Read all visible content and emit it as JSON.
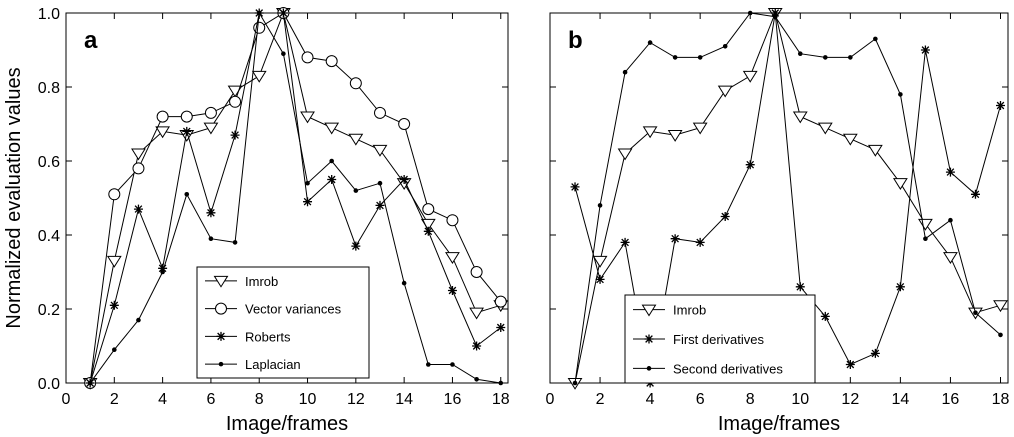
{
  "chart_data": [
    {
      "panel_label": "a",
      "type": "line",
      "xlabel": "Image/frames",
      "ylabel": "Normalized evaluation values",
      "xlim": [
        0,
        18.3
      ],
      "ylim": [
        0,
        1.0
      ],
      "xticks": [
        0,
        2,
        4,
        6,
        8,
        10,
        12,
        14,
        16,
        18
      ],
      "yticks": [
        0.0,
        0.2,
        0.4,
        0.6,
        0.8,
        1.0
      ],
      "grid": false,
      "legend": "bottom-center",
      "x": [
        1,
        2,
        3,
        4,
        5,
        6,
        7,
        8,
        9,
        10,
        11,
        12,
        13,
        14,
        15,
        16,
        17,
        18
      ],
      "series": [
        {
          "name": "Imrob",
          "marker": "triangle-down",
          "values": [
            0.0,
            0.33,
            0.62,
            0.68,
            0.67,
            0.69,
            0.79,
            0.83,
            1.0,
            0.72,
            0.69,
            0.66,
            0.63,
            0.54,
            0.43,
            0.34,
            0.19,
            0.21
          ]
        },
        {
          "name": "Vector variances",
          "marker": "circle",
          "values": [
            0.0,
            0.51,
            0.58,
            0.72,
            0.72,
            0.73,
            0.76,
            0.96,
            1.0,
            0.88,
            0.87,
            0.81,
            0.73,
            0.7,
            0.47,
            0.44,
            0.3,
            0.22
          ]
        },
        {
          "name": "Roberts",
          "marker": "star",
          "values": [
            0.0,
            0.21,
            0.47,
            0.31,
            0.68,
            0.46,
            0.67,
            1.0,
            1.0,
            0.49,
            0.55,
            0.37,
            0.48,
            0.55,
            0.41,
            0.25,
            0.1,
            0.15
          ]
        },
        {
          "name": "Laplacian",
          "marker": "dot",
          "values": [
            0.0,
            0.09,
            0.17,
            0.3,
            0.51,
            0.39,
            0.38,
            1.0,
            0.89,
            0.54,
            0.6,
            0.52,
            0.54,
            0.27,
            0.05,
            0.05,
            0.01,
            0.0
          ]
        }
      ]
    },
    {
      "panel_label": "b",
      "type": "line",
      "xlabel": "Image/frames",
      "ylabel": "",
      "xlim": [
        0,
        18.3
      ],
      "ylim": [
        0,
        1.0
      ],
      "xticks": [
        0,
        2,
        4,
        6,
        8,
        10,
        12,
        14,
        16,
        18
      ],
      "yticks": [
        0.0,
        0.2,
        0.4,
        0.6,
        0.8,
        1.0
      ],
      "grid": false,
      "legend": "bottom-left",
      "x": [
        1,
        2,
        3,
        4,
        5,
        6,
        7,
        8,
        9,
        10,
        11,
        12,
        13,
        14,
        15,
        16,
        17,
        18
      ],
      "series": [
        {
          "name": "Imrob",
          "marker": "triangle-down",
          "values": [
            0.0,
            0.33,
            0.62,
            0.68,
            0.67,
            0.69,
            0.79,
            0.83,
            1.0,
            0.72,
            0.69,
            0.66,
            0.63,
            0.54,
            0.43,
            0.34,
            0.19,
            0.21
          ]
        },
        {
          "name": "First derivatives",
          "marker": "star",
          "values": [
            0.53,
            0.28,
            0.38,
            0.0,
            0.39,
            0.38,
            0.45,
            0.59,
            1.0,
            0.26,
            0.18,
            0.05,
            0.08,
            0.26,
            0.9,
            0.57,
            0.51,
            0.75
          ]
        },
        {
          "name": "Second derivatives",
          "marker": "dot",
          "values": [
            0.0,
            0.48,
            0.84,
            0.92,
            0.88,
            0.88,
            0.91,
            1.0,
            0.99,
            0.89,
            0.88,
            0.88,
            0.93,
            0.78,
            0.39,
            0.44,
            0.19,
            0.13
          ]
        }
      ]
    }
  ]
}
